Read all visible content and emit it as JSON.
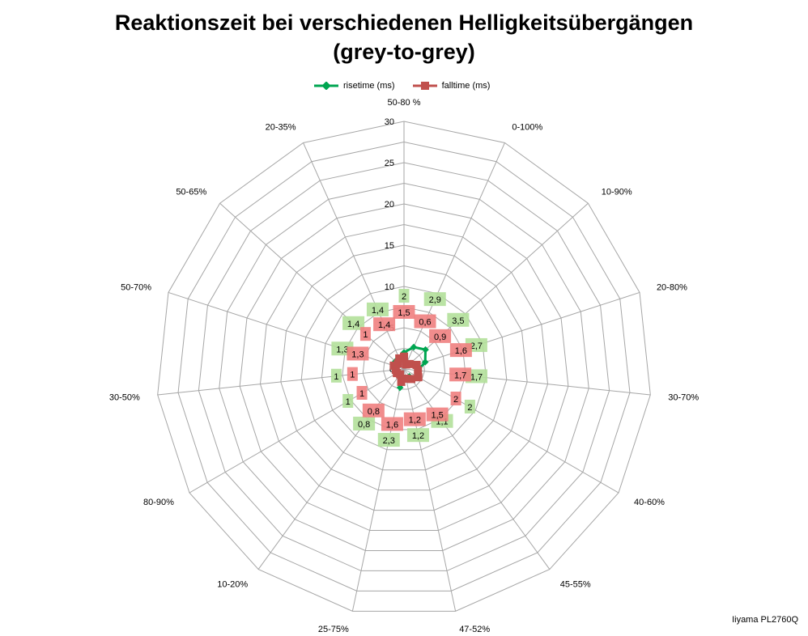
{
  "title_line1": "Reaktionszeit bei verschiedenen Helligkeitsübergängen",
  "title_line2": "(grey-to-grey)",
  "footer": "Iiyama PL2760Q",
  "colors": {
    "rise": "#00a651",
    "fall": "#c0504d",
    "grid": "#a6a6a6",
    "rise_label_bg": "#b3e09a",
    "fall_label_bg": "#f08080"
  },
  "chart_data": {
    "type": "radar",
    "title": "Reaktionszeit bei verschiedenen Helligkeitsübergängen (grey-to-grey)",
    "categories": [
      "50-80 %",
      "0-100%",
      "10-90%",
      "20-80%",
      "30-70%",
      "40-60%",
      "45-55%",
      "47-52%",
      "25-75%",
      "10-20%",
      "80-90%",
      "30-50%",
      "50-70%",
      "50-65%",
      "20-35%"
    ],
    "rlim": [
      0,
      30
    ],
    "ticks": [
      0,
      5,
      10,
      15,
      20,
      25,
      30
    ],
    "grid": true,
    "legend": "top",
    "series": [
      {
        "name": "risetime (ms)",
        "values": [
          2,
          2.9,
          3.5,
          2.7,
          1.7,
          2,
          1.1,
          1.2,
          2.3,
          0.8,
          1,
          1,
          1.3,
          1.4,
          1.4
        ]
      },
      {
        "name": "falltime (ms)",
        "values": [
          1.5,
          0.6,
          0.9,
          1.6,
          1.7,
          2,
          1.5,
          1.2,
          1.6,
          0.8,
          1,
          1,
          1.3,
          1,
          1.4
        ]
      }
    ]
  }
}
